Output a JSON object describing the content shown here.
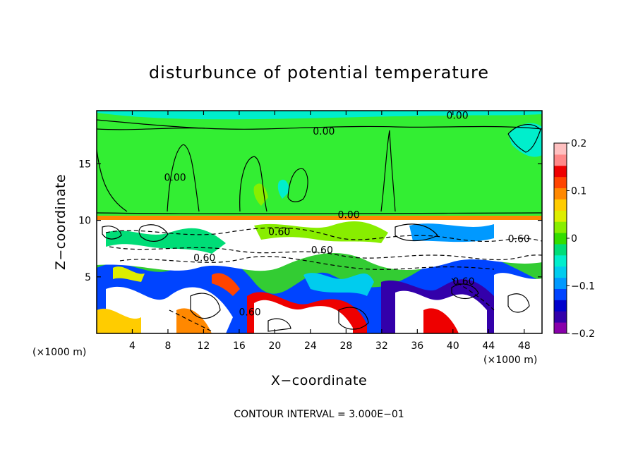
{
  "chart_data": {
    "type": "heatmap",
    "title": "disturbunce of potential temperature",
    "xlabel": "X−coordinate",
    "ylabel": "Z−coordinate",
    "x_unit_left": "(×1000 m)",
    "x_unit_right": "(×1000 m)",
    "xlim": [
      0,
      50
    ],
    "ylim": [
      0,
      19.7
    ],
    "x_ticks": [
      4,
      8,
      12,
      16,
      20,
      24,
      28,
      32,
      36,
      40,
      44,
      48
    ],
    "x_tick_labels": [
      "4",
      "8",
      "12",
      "16",
      "20",
      "24",
      "28",
      "32",
      "36",
      "40",
      "44",
      "48"
    ],
    "y_ticks": [
      5,
      10,
      15
    ],
    "y_tick_labels": [
      "5",
      "10",
      "15"
    ],
    "colorbar": {
      "range": [
        -0.2,
        0.2
      ],
      "ticks": [
        0.2,
        0.1,
        0,
        -0.1,
        -0.2
      ],
      "tick_labels": [
        "0.2",
        "0.1",
        "0",
        "−0.1",
        "−0.2"
      ],
      "colors": [
        "#8800aa",
        "#3300aa",
        "#0000cc",
        "#0044ff",
        "#0099ff",
        "#00ccee",
        "#00eecc",
        "#00dd77",
        "#33dd00",
        "#88ee00",
        "#ddee00",
        "#ffcc00",
        "#ff8800",
        "#ff4400",
        "#ee0000",
        "#ff8888",
        "#ffc0c0"
      ]
    },
    "contour_labels": [
      {
        "text": "0.00",
        "x": 25.5,
        "y": 17.9
      },
      {
        "text": "0.00",
        "x": 40.5,
        "y": 19.3
      },
      {
        "text": "0.00",
        "x": 8.8,
        "y": 13.8
      },
      {
        "text": "0.00",
        "x": 28.3,
        "y": 10.5
      },
      {
        "text": "0.60",
        "x": 20.5,
        "y": 9.0
      },
      {
        "text": "0.60",
        "x": 25.3,
        "y": 7.4
      },
      {
        "text": "0.60",
        "x": 12.1,
        "y": 6.7
      },
      {
        "text": "0.60",
        "x": 47.4,
        "y": 8.4
      },
      {
        "text": "0.60",
        "x": 41.2,
        "y": 4.6
      },
      {
        "text": "0.60",
        "x": 17.2,
        "y": 1.9
      }
    ],
    "note": "CONTOUR INTERVAL = 3.000E−01"
  }
}
